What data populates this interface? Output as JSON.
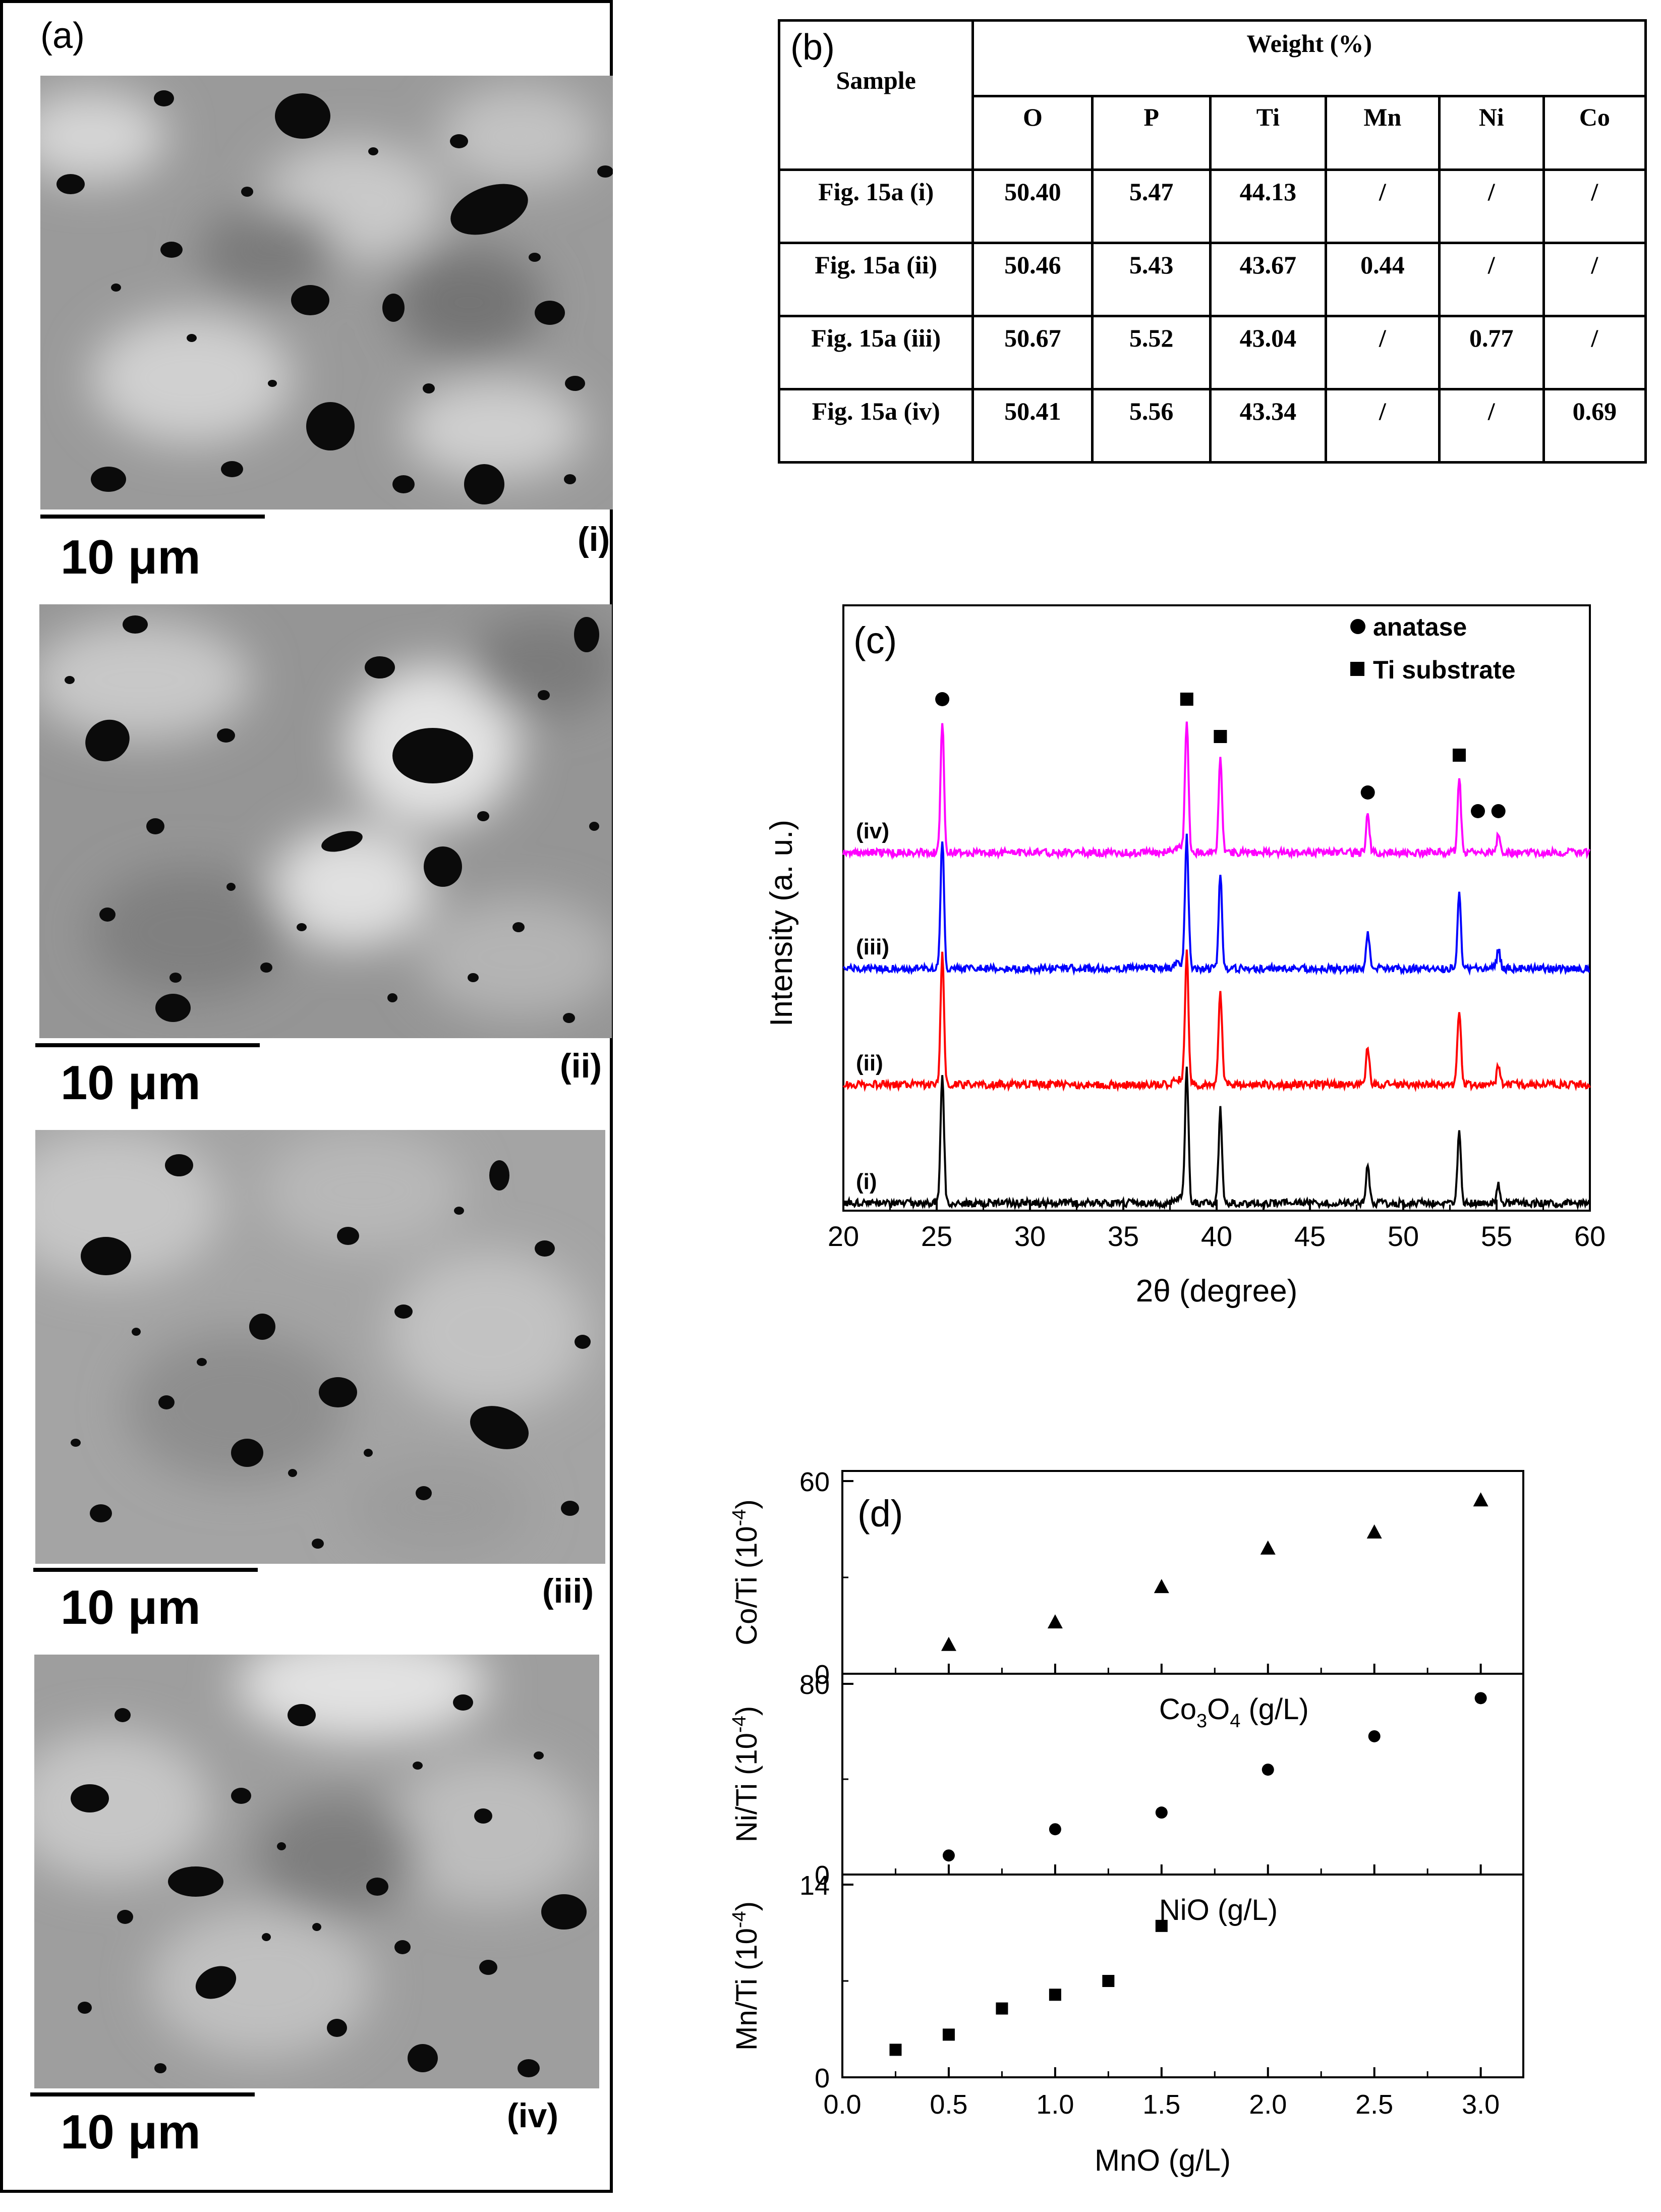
{
  "panel_a": {
    "label": "(a)",
    "images": [
      {
        "scale_label": "10 μm",
        "sub_label": "(i)"
      },
      {
        "scale_label": "10 μm",
        "sub_label": "(ii)"
      },
      {
        "scale_label": "10 μm",
        "sub_label": "(iii)"
      },
      {
        "scale_label": "10 μm",
        "sub_label": "(iv)"
      }
    ]
  },
  "panel_b": {
    "label": "(b)",
    "sample_header": "Sample",
    "weight_header": "Weight (%)",
    "columns": [
      "O",
      "P",
      "Ti",
      "Mn",
      "Ni",
      "Co"
    ],
    "rows": [
      {
        "sample": "Fig. 15a (i)",
        "values": [
          "50.40",
          "5.47",
          "44.13",
          "/",
          "/",
          "/"
        ]
      },
      {
        "sample": "Fig. 15a (ii)",
        "values": [
          "50.46",
          "5.43",
          "43.67",
          "0.44",
          "/",
          "/"
        ]
      },
      {
        "sample": "Fig. 15a (iii)",
        "values": [
          "50.67",
          "5.52",
          "43.04",
          "/",
          "0.77",
          "/"
        ]
      },
      {
        "sample": "Fig. 15a (iv)",
        "values": [
          "50.41",
          "5.56",
          "43.34",
          "/",
          "/",
          "0.69"
        ]
      }
    ]
  },
  "chart_data": [
    {
      "type": "line",
      "panel_label": "(c)",
      "xlabel": "2θ (degree)",
      "ylabel": "Intensity (a. u.)",
      "xlim": [
        20,
        60
      ],
      "x_ticks": [
        "20",
        "25",
        "30",
        "35",
        "40",
        "45",
        "50",
        "55",
        "60"
      ],
      "legend": [
        {
          "label": "anatase",
          "marker": "circle"
        },
        {
          "label": "Ti substrate",
          "marker": "square"
        }
      ],
      "series": [
        {
          "name": "(i)",
          "color": "#000000",
          "baseline": 0,
          "peaks": [
            [
              25.3,
              14
            ],
            [
              38.4,
              14
            ],
            [
              40.2,
              10
            ],
            [
              48.1,
              4
            ],
            [
              53.0,
              8
            ],
            [
              55.1,
              2
            ]
          ]
        },
        {
          "name": "(ii)",
          "color": "#ff0000",
          "baseline": 1,
          "peaks": [
            [
              25.3,
              14
            ],
            [
              38.4,
              14
            ],
            [
              40.2,
              10
            ],
            [
              48.1,
              4
            ],
            [
              53.0,
              8
            ],
            [
              55.1,
              2
            ]
          ]
        },
        {
          "name": "(iii)",
          "color": "#0000ff",
          "baseline": 2,
          "peaks": [
            [
              25.3,
              14
            ],
            [
              38.4,
              14
            ],
            [
              40.2,
              10
            ],
            [
              48.1,
              4
            ],
            [
              53.0,
              8
            ],
            [
              55.1,
              2
            ]
          ]
        },
        {
          "name": "(iv)",
          "color": "#ff00ff",
          "baseline": 3,
          "peaks": [
            [
              25.3,
              14
            ],
            [
              38.4,
              14
            ],
            [
              40.2,
              10
            ],
            [
              48.1,
              4
            ],
            [
              53.0,
              8
            ],
            [
              55.1,
              2
            ]
          ]
        }
      ],
      "phase_markers": [
        {
          "x": 25.3,
          "phase": "anatase"
        },
        {
          "x": 38.4,
          "phase": "Ti substrate"
        },
        {
          "x": 40.2,
          "phase": "Ti substrate"
        },
        {
          "x": 48.1,
          "phase": "anatase"
        },
        {
          "x": 53.0,
          "phase": "Ti substrate"
        },
        {
          "x": 54.0,
          "phase": "anatase"
        },
        {
          "x": 55.1,
          "phase": "anatase"
        }
      ]
    },
    {
      "type": "scatter",
      "panel_label": "(d)",
      "xlabel": "MnO (g/L)",
      "xlim": [
        0,
        3.2
      ],
      "x_ticks": [
        "0.0",
        "0.5",
        "1.0",
        "1.5",
        "2.0",
        "2.5",
        "3.0"
      ],
      "subplots": [
        {
          "ylabel": "Co/Ti (10",
          "ylabel_exp": "-4",
          "ylabel_end": ")",
          "ylim": [
            0,
            60
          ],
          "y_ticks": [
            "0",
            "60"
          ],
          "marker": "triangle",
          "x": [
            0.5,
            1.0,
            1.5,
            2.0,
            2.5,
            3.0
          ],
          "y": [
            9,
            16,
            27,
            39,
            44,
            54
          ]
        },
        {
          "ylabel": "Ni/Ti (10",
          "ylabel_exp": "-4",
          "ylabel_end": ")",
          "ylim": [
            0,
            80
          ],
          "y_ticks": [
            "0",
            "80"
          ],
          "marker": "circle",
          "xlabel_note_main": "Co",
          "xlabel_note_sub1": "3",
          "xlabel_note_mid": "O",
          "xlabel_note_sub2": "4",
          "xlabel_note_end": " (g/L)",
          "x": [
            0.5,
            1.0,
            1.5,
            2.0,
            2.5,
            3.0
          ],
          "y": [
            8,
            19,
            26,
            44,
            58,
            74
          ]
        },
        {
          "ylabel": "Mn/Ti (10",
          "ylabel_exp": "-4",
          "ylabel_end": ")",
          "ylim": [
            0,
            14
          ],
          "y_ticks": [
            "0",
            "14"
          ],
          "marker": "square",
          "xlabel_note": "NiO (g/L)",
          "x": [
            0.25,
            0.5,
            0.75,
            1.0,
            1.25,
            1.5
          ],
          "y": [
            2.0,
            3.1,
            5.0,
            6.0,
            7.0,
            11.0
          ]
        }
      ]
    }
  ]
}
